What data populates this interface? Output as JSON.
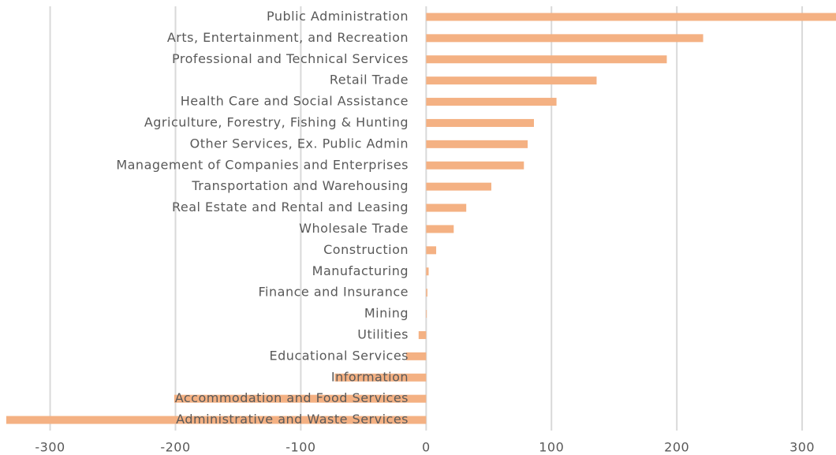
{
  "chart_data": {
    "type": "bar",
    "orientation": "horizontal",
    "categories": [
      "Public Administration",
      "Arts, Entertainment, and Recreation",
      "Professional and Technical Services",
      "Retail Trade",
      "Health Care and Social Assistance",
      "Agriculture, Forestry, Fishing & Hunting",
      "Other Services, Ex. Public Admin",
      "Management of Companies and Enterprises",
      "Transportation and Warehousing",
      "Real Estate and Rental and Leasing",
      "Wholesale Trade",
      "Construction",
      "Manufacturing",
      "Finance and Insurance",
      "Mining",
      "Utilities",
      "Educational Services",
      "Information",
      "Accommodation and Food Services",
      "Administrative and Waste Services"
    ],
    "values": [
      327,
      221,
      192,
      136,
      104,
      86,
      81,
      78,
      52,
      32,
      22,
      8,
      2,
      1,
      0.5,
      -6,
      -16,
      -73,
      -201,
      -335
    ],
    "color": "#f4b183",
    "xlim": [
      -340,
      327
    ],
    "xticks": [
      -300,
      -200,
      -100,
      0,
      100,
      200,
      300
    ],
    "grid": true
  }
}
